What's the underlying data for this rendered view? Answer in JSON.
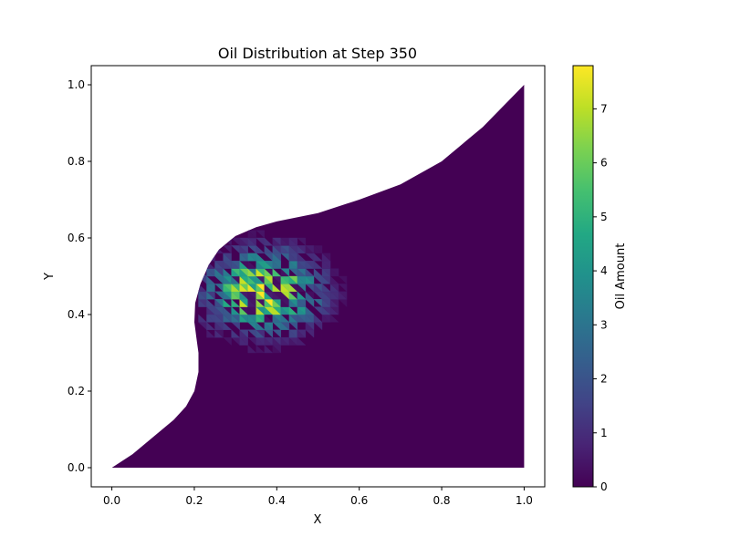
{
  "chart_data": {
    "type": "heatmap",
    "title": "Oil Distribution at Step 350",
    "xlabel": "X",
    "ylabel": "Y",
    "xlim": [
      -0.05,
      1.05
    ],
    "ylim": [
      -0.05,
      1.05
    ],
    "xticks": [
      "0.0",
      "0.2",
      "0.4",
      "0.6",
      "0.8",
      "1.0"
    ],
    "yticks": [
      "0.0",
      "0.2",
      "0.4",
      "0.6",
      "0.8",
      "1.0"
    ],
    "colorbar": {
      "label": "Oil Amount",
      "ticks": [
        "0",
        "1",
        "2",
        "3",
        "4",
        "5",
        "6",
        "7"
      ],
      "range": [
        0,
        7.8
      ],
      "colormap": "viridis"
    },
    "domain_boundary": [
      [
        0.0,
        0.0
      ],
      [
        0.05,
        0.035
      ],
      [
        0.1,
        0.08
      ],
      [
        0.15,
        0.125
      ],
      [
        0.18,
        0.16
      ],
      [
        0.2,
        0.2
      ],
      [
        0.21,
        0.25
      ],
      [
        0.21,
        0.3
      ],
      [
        0.205,
        0.34
      ],
      [
        0.2,
        0.38
      ],
      [
        0.202,
        0.43
      ],
      [
        0.215,
        0.48
      ],
      [
        0.235,
        0.53
      ],
      [
        0.26,
        0.57
      ],
      [
        0.3,
        0.605
      ],
      [
        0.35,
        0.628
      ],
      [
        0.4,
        0.643
      ],
      [
        0.5,
        0.665
      ],
      [
        0.6,
        0.7
      ],
      [
        0.7,
        0.74
      ],
      [
        0.8,
        0.8
      ],
      [
        0.9,
        0.89
      ],
      [
        1.0,
        1.0
      ],
      [
        1.0,
        0.0
      ]
    ],
    "background_value": 0.1,
    "plume": {
      "center": [
        0.36,
        0.45
      ],
      "peak_value": 7.8,
      "extent_x": [
        0.21,
        0.6
      ],
      "extent_y": [
        0.2,
        0.62
      ]
    }
  }
}
